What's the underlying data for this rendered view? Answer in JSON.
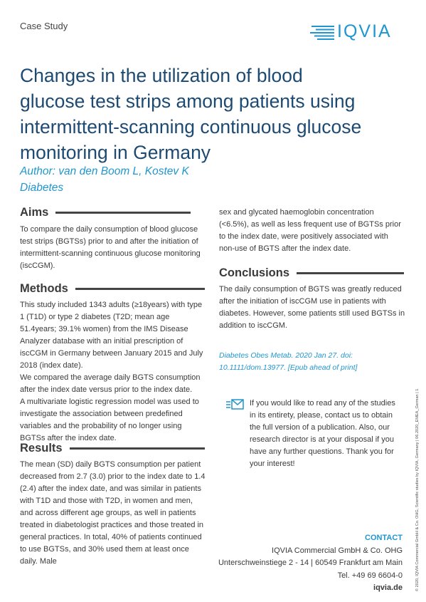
{
  "header": {
    "label": "Case Study",
    "logo": "IQVIA"
  },
  "title_lines": [
    "Changes in the utilization of blood",
    "glucose test strips among patients using",
    "intermittent-scanning continuous glucose",
    "monitoring in Germany"
  ],
  "author": "Author: van den Boom L, Kostev K",
  "journal": "Diabetes",
  "aims": {
    "heading": "Aims",
    "text": "To compare the daily consumption of blood glucose test strips (BGTSs) prior to and after the initiation of intermittent-scanning continuous glucose monitoring (iscCGM)."
  },
  "methods": {
    "heading": "Methods",
    "paragraphs": [
      "This study included 1343 adults (≥18years) with type 1 (T1D) or type 2 diabetes (T2D; mean age 51.4years; 39.1% women) from the IMS Disease Analyzer database with an initial prescription of iscCGM in Germany between January 2015 and July 2018 (index date).",
      "We compared the average daily BGTS consumption after the index date versus prior to the index date.",
      "A multivariate logistic regression model was used to investigate the association between predefined variables and the probability of no longer using BGTSs after the index date."
    ]
  },
  "results": {
    "heading": "Results",
    "paragraphs": [
      "The mean (SD) daily BGTS consumption per patient decreased from 2.7 (3.0) prior to the index date to 1.4 (2.4) after the index date, and was similar in patients with T1D and those with T2D, in women and men, and across different age groups, as well in patients treated in diabetologist practices and those treated in general practices. In total, 40% of patients continued to use BGTSs, and 30% used them at least once daily. Male",
      "sex and glycated haemoglobin concentration (<6.5%), as well as less frequent use of BGTSs prior to the index date, were positively associated with non-use of BGTS after the index date."
    ]
  },
  "conclusions": {
    "heading": "Conclusions",
    "text": "The daily consumption of BGTS was greatly reduced after the initiation of iscCGM use in patients with diabetes. However, some patients still used BGTSs in addition to iscCGM."
  },
  "citation": "Diabetes Obes Metab. 2020 Jan 27. doi: 10.1111/dom.13977. [Epub ahead of print]",
  "request": "If you would like to read any of the studies in its entirety, please, contact us to obtain the full version of a publication. Also, our research director is at your disposal if you have any further questions. Thank you for your interest!",
  "contact": {
    "heading": "CONTACT",
    "lines": [
      "IQVIA Commercial GmbH & Co. OHG",
      "Unterschweinstiege 2 - 14 | 60549 Frankfurt am Main",
      "Tel. +49 69 6604-0"
    ],
    "website": "iqvia.de"
  },
  "footer_note": "© 2020, IQVIA Commercial GmbH & Co. OHG, Scientific studies by IQVIA, Germany | 06.2020_EMEA_German | 1"
}
